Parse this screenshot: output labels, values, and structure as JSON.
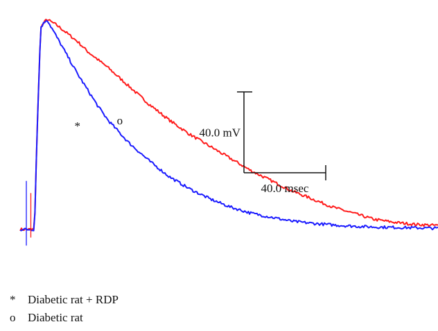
{
  "chart_data": {
    "type": "line",
    "title": "",
    "xlabel": "",
    "ylabel": "",
    "x_unit": "msec",
    "y_unit": "mV",
    "scale_bar": {
      "x_label": "40.0 msec",
      "y_label": "40.0 mV",
      "x_value": 40.0,
      "y_value": 40.0
    },
    "series": [
      {
        "name": "Diabetic rat",
        "marker": "o",
        "color": "#ff1a1a",
        "x": [
          0,
          4,
          5,
          7,
          10,
          15,
          20,
          25,
          30,
          35,
          40,
          50,
          60,
          70,
          80,
          90,
          100,
          110,
          120,
          130,
          140,
          150,
          160,
          170,
          180,
          190,
          200,
          210,
          220,
          240,
          260,
          280,
          300
        ],
        "y": [
          0,
          0,
          40,
          100,
          104,
          101,
          97,
          93,
          88,
          84,
          80,
          71,
          62,
          54,
          47,
          41,
          35,
          29,
          24,
          19,
          15,
          11,
          8,
          5,
          3.5,
          2.5,
          2,
          1.5,
          1,
          0.5,
          0.5,
          0.5,
          0.5
        ]
      },
      {
        "name": "Diabetic rat + RDP",
        "marker": "*",
        "color": "#1a1aff",
        "x": [
          0,
          4,
          5,
          7,
          10,
          15,
          20,
          25,
          30,
          35,
          40,
          50,
          60,
          70,
          80,
          90,
          100,
          110,
          120,
          130,
          140,
          150,
          160,
          170,
          180,
          190,
          200,
          210,
          220,
          240,
          260,
          280,
          300
        ],
        "y": [
          0,
          0,
          40,
          100,
          104,
          95,
          86,
          77,
          69,
          61,
          54,
          43,
          34,
          26,
          20,
          15,
          11,
          8,
          6,
          4,
          3,
          2.2,
          1.6,
          1.2,
          1,
          0.8,
          0.6,
          0.5,
          0.5,
          0.5,
          0.5,
          0.5,
          0.5
        ]
      }
    ],
    "annotations": [
      {
        "text": "*",
        "series": "Diabetic rat + RDP"
      },
      {
        "text": "o",
        "series": "Diabetic rat"
      }
    ]
  },
  "legend": {
    "items": [
      {
        "symbol": "*",
        "label": "Diabetic rat + RDP"
      },
      {
        "symbol": "o",
        "label": "Diabetic rat"
      }
    ]
  }
}
